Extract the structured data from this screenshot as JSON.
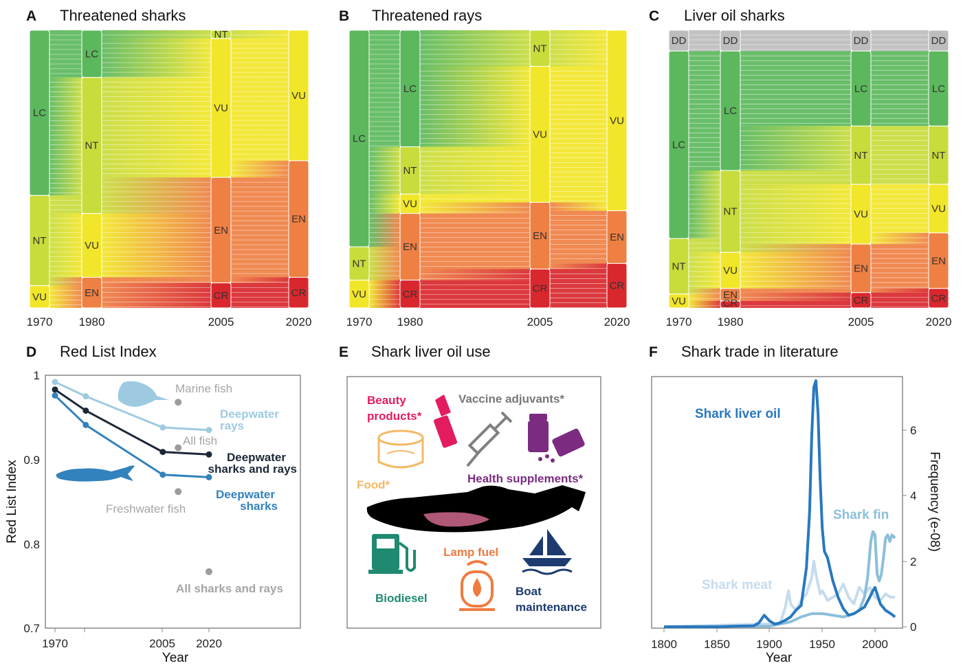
{
  "colors": {
    "LC": "#5cb85c",
    "NT": "#c8dc3c",
    "VU": "#f2e62a",
    "EN": "#ef8043",
    "CR": "#d9282d",
    "DD": "#bdbdbd",
    "deepwater_rays": "#9ecae1",
    "deepwater_sharks_rays": "#1c2838",
    "deepwater_sharks": "#3282bd",
    "other_groups": "#9c9c9c",
    "beauty": "#e31b5f",
    "vaccine": "#777777",
    "food": "#f5b864",
    "health": "#7b2c80",
    "biodiesel": "#1f8a70",
    "lamp": "#f07a3f",
    "boat": "#1d3b6e",
    "liver_oil": "#2878be",
    "shark_fin": "#8bbfdb",
    "shark_meat": "#c5dcee"
  },
  "sankeys": [
    {
      "letter": "A",
      "title": "Threatened sharks",
      "years": [
        "1970",
        "1980",
        "2005",
        "2020"
      ],
      "nodes": [
        [
          {
            "cat": "LC",
            "f": 0.595,
            "label": "LC"
          },
          {
            "cat": "NT",
            "f": 0.325,
            "label": "NT"
          },
          {
            "cat": "VU",
            "f": 0.08,
            "label": "VU"
          }
        ],
        [
          {
            "cat": "LC",
            "f": 0.17,
            "label": "LC"
          },
          {
            "cat": "NT",
            "f": 0.49,
            "label": "NT"
          },
          {
            "cat": "VU",
            "f": 0.23,
            "label": "VU"
          },
          {
            "cat": "EN",
            "f": 0.11,
            "label": "EN"
          }
        ],
        [
          {
            "cat": "NT",
            "f": 0.03,
            "label": "NT"
          },
          {
            "cat": "VU",
            "f": 0.5,
            "label": "VU"
          },
          {
            "cat": "EN",
            "f": 0.38,
            "label": "EN"
          },
          {
            "cat": "CR",
            "f": 0.09,
            "label": "CR"
          }
        ],
        [
          {
            "cat": "VU",
            "f": 0.47,
            "label": "VU"
          },
          {
            "cat": "EN",
            "f": 0.42,
            "label": "EN"
          },
          {
            "cat": "CR",
            "f": 0.11,
            "label": "CR"
          }
        ]
      ]
    },
    {
      "letter": "B",
      "title": "Threatened rays",
      "years": [
        "1970",
        "1980",
        "2005",
        "2020"
      ],
      "nodes": [
        [
          {
            "cat": "LC",
            "f": 0.78,
            "label": "LC"
          },
          {
            "cat": "NT",
            "f": 0.12,
            "label": "NT"
          },
          {
            "cat": "VU",
            "f": 0.1,
            "label": "VU"
          }
        ],
        [
          {
            "cat": "LC",
            "f": 0.42,
            "label": "LC"
          },
          {
            "cat": "NT",
            "f": 0.17,
            "label": "NT"
          },
          {
            "cat": "VU",
            "f": 0.07,
            "label": "VU"
          },
          {
            "cat": "EN",
            "f": 0.24,
            "label": "EN"
          },
          {
            "cat": "CR",
            "f": 0.1,
            "label": "CR"
          }
        ],
        [
          {
            "cat": "NT",
            "f": 0.13,
            "label": "NT"
          },
          {
            "cat": "VU",
            "f": 0.49,
            "label": "VU"
          },
          {
            "cat": "EN",
            "f": 0.24,
            "label": "EN"
          },
          {
            "cat": "CR",
            "f": 0.14,
            "label": "CR"
          }
        ],
        [
          {
            "cat": "VU",
            "f": 0.65,
            "label": "VU"
          },
          {
            "cat": "EN",
            "f": 0.19,
            "label": "EN"
          },
          {
            "cat": "CR",
            "f": 0.16,
            "label": "CR"
          }
        ]
      ]
    },
    {
      "letter": "C",
      "title": "Liver oil sharks",
      "years": [
        "1970",
        "1980",
        "2005",
        "2020"
      ],
      "nodes": [
        [
          {
            "cat": "DD",
            "f": 0.075,
            "label": "DD"
          },
          {
            "cat": "LC",
            "f": 0.675,
            "label": "LC"
          },
          {
            "cat": "NT",
            "f": 0.2,
            "label": "NT"
          },
          {
            "cat": "VU",
            "f": 0.05,
            "label": "VU"
          }
        ],
        [
          {
            "cat": "DD",
            "f": 0.075,
            "label": "DD"
          },
          {
            "cat": "LC",
            "f": 0.43,
            "label": "LC"
          },
          {
            "cat": "NT",
            "f": 0.295,
            "label": "NT"
          },
          {
            "cat": "VU",
            "f": 0.13,
            "label": "VU"
          },
          {
            "cat": "EN",
            "f": 0.045,
            "label": "EN"
          },
          {
            "cat": "CR",
            "f": 0.025,
            "label": "CR"
          }
        ],
        [
          {
            "cat": "DD",
            "f": 0.075,
            "label": "DD"
          },
          {
            "cat": "LC",
            "f": 0.27,
            "label": "LC"
          },
          {
            "cat": "NT",
            "f": 0.21,
            "label": "NT"
          },
          {
            "cat": "VU",
            "f": 0.215,
            "label": "VU"
          },
          {
            "cat": "EN",
            "f": 0.175,
            "label": "EN"
          },
          {
            "cat": "CR",
            "f": 0.055,
            "label": "CR"
          }
        ],
        [
          {
            "cat": "DD",
            "f": 0.075,
            "label": "DD"
          },
          {
            "cat": "LC",
            "f": 0.27,
            "label": "LC"
          },
          {
            "cat": "NT",
            "f": 0.21,
            "label": "NT"
          },
          {
            "cat": "VU",
            "f": 0.175,
            "label": "VU"
          },
          {
            "cat": "EN",
            "f": 0.2,
            "label": "EN"
          },
          {
            "cat": "CR",
            "f": 0.07,
            "label": "CR"
          }
        ]
      ]
    }
  ],
  "panel_d": {
    "letter": "D",
    "title": "Red List Index",
    "ylabel": "Red List Index",
    "xlabel": "Year",
    "yticks": [
      "1",
      "0.9",
      "0.8",
      "0.7"
    ],
    "xticks": [
      "1970",
      "2005",
      "2020"
    ],
    "labels": {
      "marine": "Marine fish",
      "deep_rays_1": "Deepwater",
      "deep_rays_2": "rays",
      "all_fish": "All fish",
      "dsr_1": "Deepwater",
      "dsr_2": "sharks and rays",
      "ds_1": "Deepwater",
      "ds_2": "sharks",
      "fresh": "Freshwater fish",
      "all_sr": "All sharks and rays"
    }
  },
  "panel_e": {
    "letter": "E",
    "title": "Shark liver oil use",
    "uses": {
      "beauty_1": "Beauty",
      "beauty_2": "products*",
      "vaccine": "Vaccine adjuvants*",
      "food": "Food*",
      "health": "Health supplements*",
      "lamp": "Lamp fuel",
      "biodiesel": "Biodiesel",
      "boat_1": "Boat",
      "boat_2": "maintenance"
    }
  },
  "panel_f": {
    "letter": "F",
    "title": "Shark trade in literature",
    "xlabel": "Year",
    "ylabel": "Frequency (e-08)",
    "xticks": [
      "1800",
      "1850",
      "1900",
      "1950",
      "2000"
    ],
    "yticks": [
      "0",
      "2",
      "4",
      "6"
    ],
    "series_labels": {
      "liver_oil": "Shark liver oil",
      "shark_fin": "Shark fin",
      "shark_meat": "Shark meat"
    }
  },
  "chart_data": [
    {
      "type": "line",
      "title": "Red List Index",
      "xlabel": "Year",
      "ylabel": "Red List Index",
      "ylim": [
        0.7,
        1.0
      ],
      "xlim": [
        1970,
        2020
      ],
      "series": [
        {
          "name": "Deepwater rays",
          "x": [
            1970,
            1980,
            2005,
            2020
          ],
          "values": [
            0.992,
            0.975,
            0.938,
            0.935
          ]
        },
        {
          "name": "Deepwater sharks and rays",
          "x": [
            1970,
            1980,
            2005,
            2020
          ],
          "values": [
            0.983,
            0.958,
            0.909,
            0.906
          ]
        },
        {
          "name": "Deepwater sharks",
          "x": [
            1970,
            1980,
            2005,
            2020
          ],
          "values": [
            0.976,
            0.941,
            0.882,
            0.879
          ]
        }
      ],
      "points": [
        {
          "name": "Marine fish",
          "x": 2010,
          "value": 0.968
        },
        {
          "name": "All fish",
          "x": 2010,
          "value": 0.914
        },
        {
          "name": "Freshwater fish",
          "x": 2010,
          "value": 0.862
        },
        {
          "name": "All sharks and rays",
          "x": 2020,
          "value": 0.767
        }
      ]
    },
    {
      "type": "line",
      "title": "Shark trade in literature",
      "xlabel": "Year",
      "ylabel": "Frequency (e-08)",
      "xlim": [
        1800,
        2019
      ],
      "ylim": [
        0,
        7.5
      ],
      "series": [
        {
          "name": "Shark liver oil",
          "x": [
            1800,
            1850,
            1870,
            1885,
            1890,
            1895,
            1900,
            1905,
            1910,
            1915,
            1920,
            1925,
            1930,
            1935,
            1938,
            1940,
            1942,
            1944,
            1946,
            1948,
            1950,
            1952,
            1955,
            1960,
            1965,
            1970,
            1975,
            1980,
            1985,
            1990,
            1995,
            1998,
            2000,
            2003,
            2005,
            2010,
            2015,
            2019
          ],
          "values": [
            0,
            0,
            0.02,
            0.03,
            0.12,
            0.35,
            0.18,
            0.08,
            0.12,
            0.2,
            0.3,
            0.5,
            0.65,
            1.8,
            3.5,
            5.8,
            7.3,
            7.5,
            6.5,
            4.5,
            3.0,
            2.3,
            2.1,
            1.4,
            0.9,
            0.55,
            0.35,
            0.4,
            0.5,
            0.6,
            0.9,
            1.1,
            1.2,
            0.9,
            0.7,
            0.5,
            0.4,
            0.3
          ]
        },
        {
          "name": "Shark fin",
          "x": [
            1800,
            1900,
            1920,
            1930,
            1940,
            1950,
            1960,
            1970,
            1975,
            1980,
            1985,
            1990,
            1993,
            1996,
            1998,
            2000,
            2002,
            2004,
            2006,
            2008,
            2010,
            2012,
            2014,
            2016,
            2019
          ],
          "values": [
            0,
            0.02,
            0.15,
            0.3,
            0.4,
            0.4,
            0.35,
            0.3,
            0.35,
            0.4,
            0.5,
            0.9,
            1.5,
            2.6,
            2.9,
            2.8,
            1.6,
            1.4,
            1.6,
            2.1,
            2.7,
            2.8,
            2.6,
            2.8,
            2.7
          ]
        },
        {
          "name": "Shark meat",
          "x": [
            1800,
            1910,
            1915,
            1918,
            1920,
            1925,
            1930,
            1935,
            1940,
            1942,
            1944,
            1946,
            1948,
            1950,
            1955,
            1960,
            1965,
            1970,
            1975,
            1980,
            1985,
            1990,
            1995,
            2000,
            2005,
            2010,
            2015,
            2019
          ],
          "values": [
            0,
            0.1,
            0.6,
            1.1,
            0.7,
            0.5,
            0.8,
            1.0,
            1.5,
            2.0,
            1.6,
            1.3,
            1.0,
            1.1,
            0.8,
            0.9,
            1.0,
            1.3,
            0.9,
            0.7,
            1.2,
            1.0,
            1.2,
            0.9,
            0.8,
            1.0,
            0.9,
            0.9
          ]
        }
      ]
    }
  ]
}
